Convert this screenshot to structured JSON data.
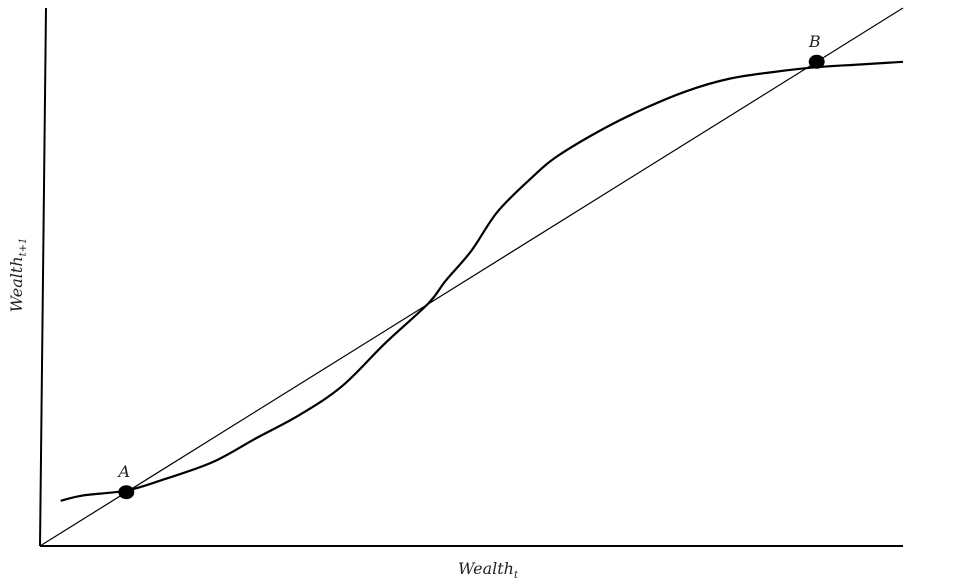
{
  "chart_data": {
    "type": "line",
    "xlabel": "Wealth",
    "xlabel_subscript": "t",
    "ylabel": "Wealth",
    "ylabel_subscript": "t+1",
    "xlim": [
      0,
      100
    ],
    "ylim": [
      0,
      100
    ],
    "grid": false,
    "series": [
      {
        "role": "forty-five-degree-line",
        "x": [
          0,
          100
        ],
        "y": [
          0,
          100
        ]
      },
      {
        "role": "s-curve",
        "x": [
          2.4,
          5.0,
          10.0,
          14.0,
          20.0,
          25.0,
          30.0,
          35.0,
          40.0,
          45.0,
          47.0,
          50.0,
          53.0,
          57.0,
          60.0,
          65.0,
          70.0,
          75.0,
          80.0,
          85.0,
          90.0,
          95.0,
          100.0
        ],
        "y": [
          8.4,
          9.4,
          10.3,
          12.2,
          15.6,
          20.0,
          24.3,
          29.7,
          37.7,
          45.1,
          49.3,
          54.9,
          62.1,
          68.5,
          72.5,
          77.3,
          81.3,
          84.6,
          86.9,
          88.1,
          89.0,
          89.5,
          90.0
        ]
      }
    ],
    "points": [
      {
        "label": "A",
        "x": 10,
        "y": 10
      },
      {
        "label": "B",
        "x": 90,
        "y": 90
      }
    ]
  }
}
